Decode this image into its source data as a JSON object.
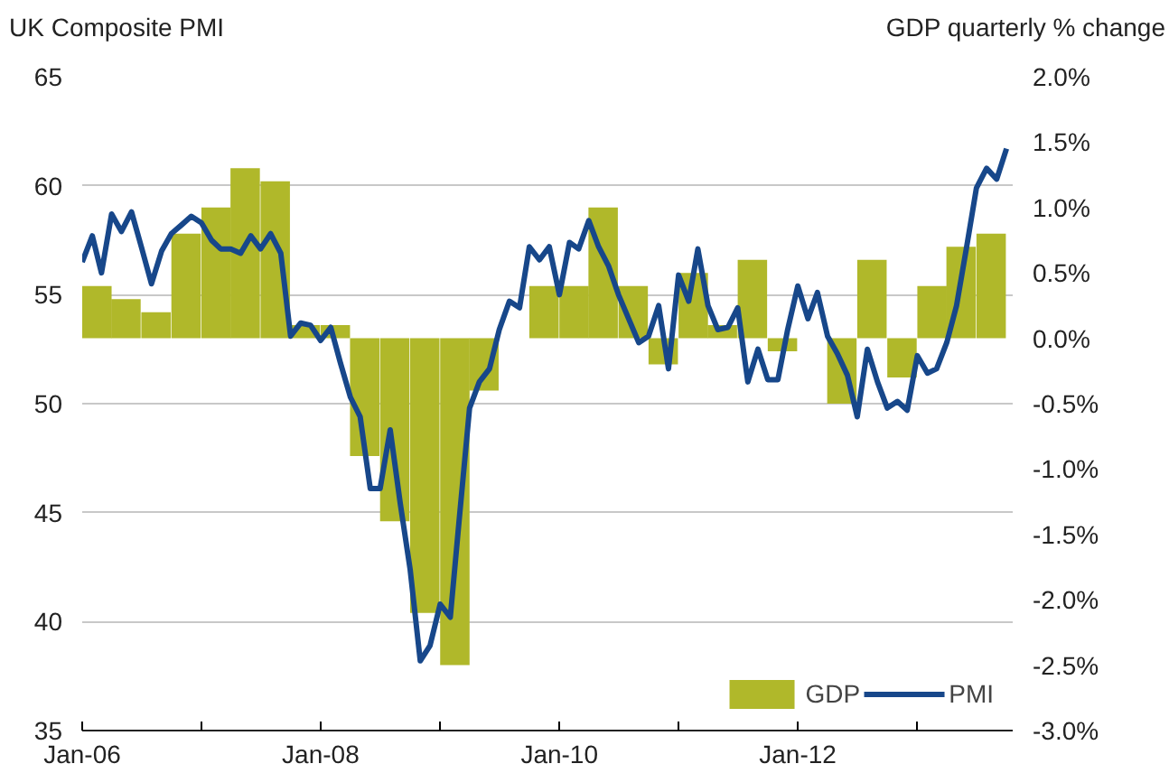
{
  "chart_data": {
    "type": "line",
    "ylabel": "UK Composite PMI",
    "y2label": "GDP quarterly % change",
    "xlim": [
      "2006-01-01",
      "2013-10-20"
    ],
    "xticks": [
      {
        "value": "2006-01",
        "label": "Jan-06"
      },
      {
        "value": "2007-01",
        "label": null
      },
      {
        "value": "2008-01",
        "label": "Jan-08"
      },
      {
        "value": "2009-01",
        "label": null
      },
      {
        "value": "2010-01",
        "label": "Jan-10"
      },
      {
        "value": "2011-01",
        "label": null
      },
      {
        "value": "2012-01",
        "label": "Jan-12"
      },
      {
        "value": "2013-01",
        "label": null
      }
    ],
    "ylim": [
      35,
      65
    ],
    "yticks": [
      35,
      40,
      45,
      50,
      55,
      60,
      65
    ],
    "y2lim": [
      -3,
      2
    ],
    "y2ticks": [
      {
        "value": -3,
        "label": "-3.0%"
      },
      {
        "value": -2.5,
        "label": "-2.5%"
      },
      {
        "value": -2,
        "label": "-2.0%"
      },
      {
        "value": -1.5,
        "label": "-1.5%"
      },
      {
        "value": -1,
        "label": "-1.0%"
      },
      {
        "value": -0.5,
        "label": "-0.5%"
      },
      {
        "value": 0,
        "label": "0.0%"
      },
      {
        "value": 0.5,
        "label": "0.5%"
      },
      {
        "value": 1,
        "label": "1.0%"
      },
      {
        "value": 1.5,
        "label": "1.5%"
      },
      {
        "value": 2,
        "label": "2.0%"
      }
    ],
    "grid": "y",
    "legend": "bottom right",
    "series": [
      {
        "name": "GDP",
        "type": "bar",
        "axis": "y2",
        "color": "#b0b82a",
        "x": [
          "2006-02-15",
          "2006-05-15",
          "2006-08-15",
          "2006-11-15",
          "2007-02-15",
          "2007-05-15",
          "2007-08-15",
          "2007-11-15",
          "2008-02-15",
          "2008-05-15",
          "2008-08-15",
          "2008-11-15",
          "2009-02-15",
          "2009-05-15",
          "2009-08-15",
          "2009-11-15",
          "2010-02-15",
          "2010-05-15",
          "2010-08-15",
          "2010-11-15",
          "2011-02-15",
          "2011-05-15",
          "2011-08-15",
          "2011-11-15",
          "2012-02-15",
          "2012-05-15",
          "2012-08-15",
          "2012-11-15",
          "2013-02-15",
          "2013-05-15",
          "2013-08-15"
        ],
        "values": [
          0.4,
          0.3,
          0.2,
          0.8,
          1.0,
          1.3,
          1.2,
          0.1,
          0.1,
          -0.9,
          -1.4,
          -2.1,
          -2.5,
          -0.4,
          0.0,
          0.4,
          0.4,
          1.0,
          0.4,
          -0.2,
          0.5,
          0.1,
          0.6,
          -0.1,
          0.0,
          -0.5,
          0.6,
          -0.3,
          0.4,
          0.7,
          0.8
        ]
      },
      {
        "name": "PMI",
        "color": "#17478a",
        "x": [
          "2006-01",
          "2006-02",
          "2006-03",
          "2006-04",
          "2006-05",
          "2006-06",
          "2006-07",
          "2006-08",
          "2006-09",
          "2006-10",
          "2006-11",
          "2006-12",
          "2007-01",
          "2007-02",
          "2007-03",
          "2007-04",
          "2007-05",
          "2007-06",
          "2007-07",
          "2007-08",
          "2007-09",
          "2007-10",
          "2007-11",
          "2007-12",
          "2008-01",
          "2008-02",
          "2008-03",
          "2008-04",
          "2008-05",
          "2008-06",
          "2008-07",
          "2008-08",
          "2008-09",
          "2008-10",
          "2008-11",
          "2008-12",
          "2009-01",
          "2009-02",
          "2009-03",
          "2009-04",
          "2009-05",
          "2009-06",
          "2009-07",
          "2009-08",
          "2009-09",
          "2009-10",
          "2009-11",
          "2009-12",
          "2010-01",
          "2010-02",
          "2010-03",
          "2010-04",
          "2010-05",
          "2010-06",
          "2010-07",
          "2010-08",
          "2010-09",
          "2010-10",
          "2010-11",
          "2010-12",
          "2011-01",
          "2011-02",
          "2011-03",
          "2011-04",
          "2011-05",
          "2011-06",
          "2011-07",
          "2011-08",
          "2011-09",
          "2011-10",
          "2011-11",
          "2011-12",
          "2012-01",
          "2012-02",
          "2012-03",
          "2012-04",
          "2012-05",
          "2012-06",
          "2012-07",
          "2012-08",
          "2012-09",
          "2012-10",
          "2012-11",
          "2012-12",
          "2013-01",
          "2013-02",
          "2013-03",
          "2013-04",
          "2013-05",
          "2013-06",
          "2013-07",
          "2013-08",
          "2013-09",
          "2013-10"
        ],
        "values": [
          56.5,
          57.7,
          56.0,
          58.7,
          57.9,
          58.8,
          57.2,
          55.5,
          57.0,
          57.8,
          58.2,
          58.6,
          58.3,
          57.5,
          57.1,
          57.1,
          56.9,
          57.7,
          57.1,
          57.8,
          56.9,
          53.1,
          53.7,
          53.6,
          52.9,
          53.5,
          51.9,
          50.3,
          49.4,
          46.1,
          46.1,
          48.8,
          45.4,
          42.4,
          38.2,
          38.9,
          40.8,
          40.2,
          44.8,
          49.8,
          51.0,
          51.6,
          53.4,
          54.7,
          54.4,
          57.2,
          56.6,
          57.2,
          55.0,
          57.4,
          57.1,
          58.4,
          57.2,
          56.3,
          55.0,
          53.9,
          52.8,
          53.1,
          54.5,
          51.6,
          55.9,
          54.7,
          57.1,
          54.5,
          53.4,
          53.5,
          54.4,
          51.0,
          52.5,
          51.1,
          51.1,
          53.4,
          55.4,
          53.9,
          55.1,
          53.1,
          52.3,
          51.3,
          49.4,
          52.5,
          51.0,
          49.8,
          50.1,
          49.7,
          52.2,
          51.4,
          51.6,
          52.8,
          54.5,
          57.2,
          59.9,
          60.8,
          60.3,
          61.7
        ]
      }
    ]
  }
}
